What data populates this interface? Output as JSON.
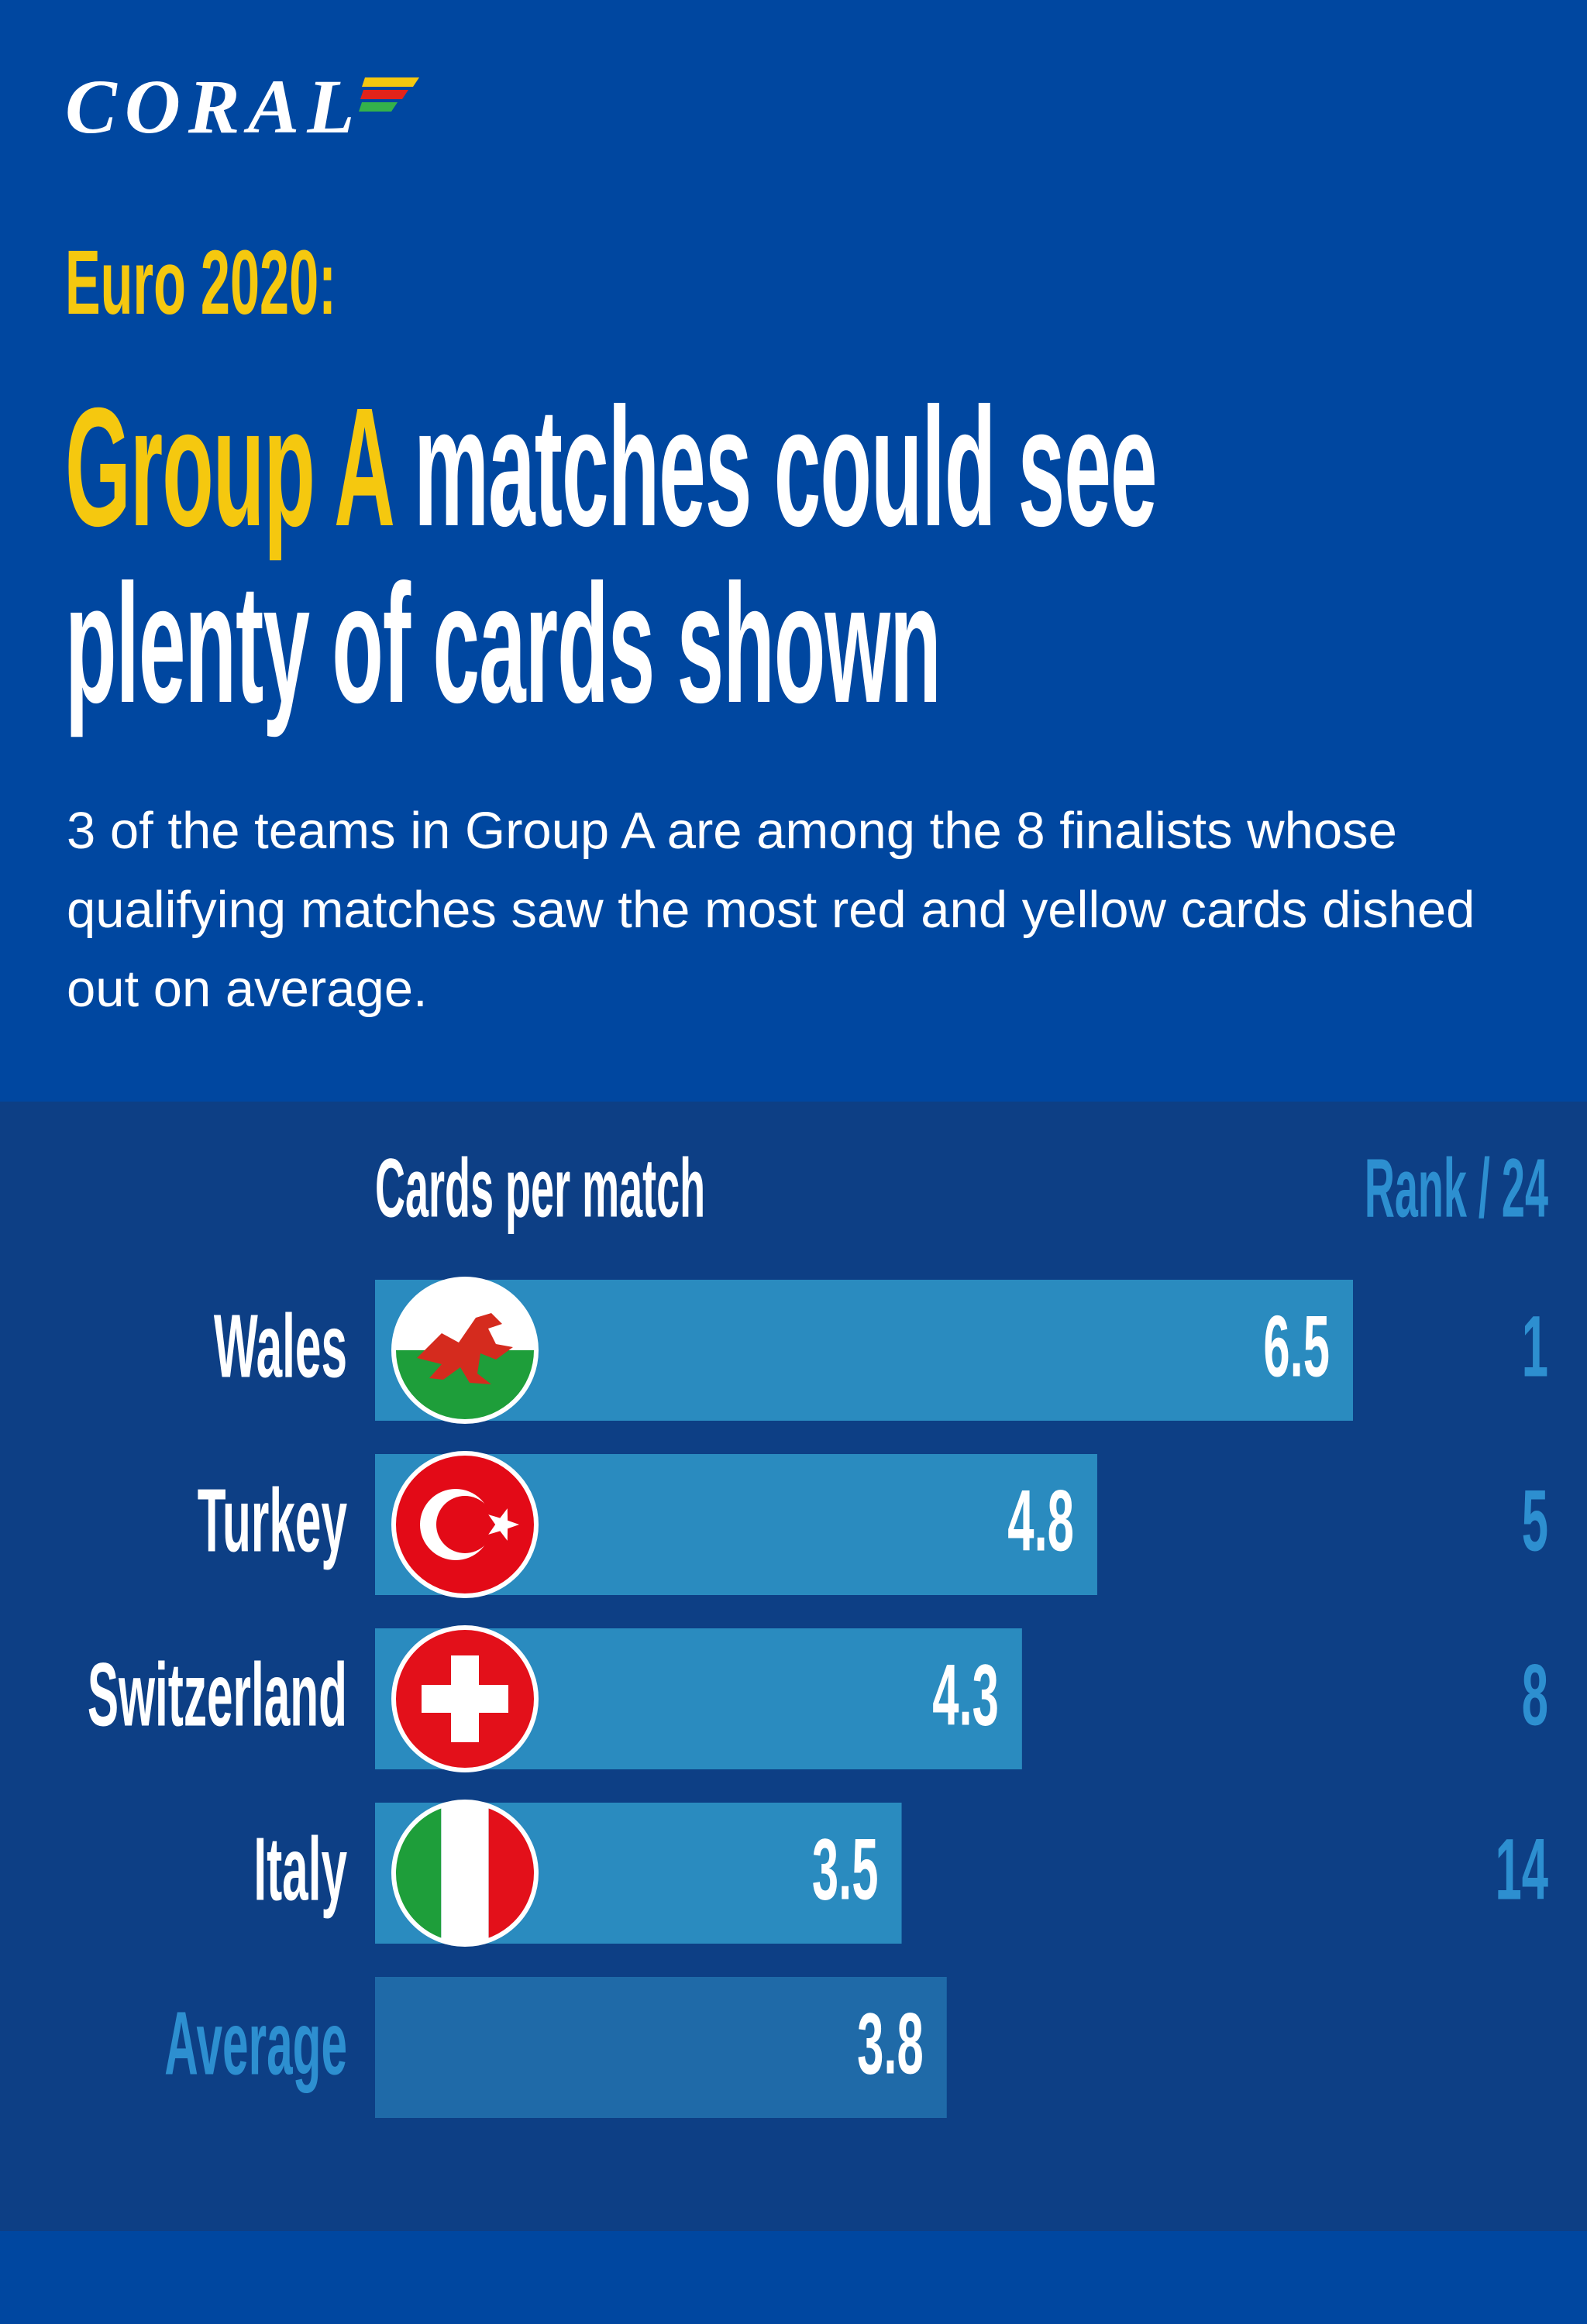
{
  "brand": {
    "logo_text": "CORAL",
    "colors": {
      "navy": "#0047a0",
      "panel": "#0d3f85",
      "yellow": "#f5c80f",
      "bar": "#2a8bbf",
      "muted": "#2d8fd0"
    }
  },
  "header": {
    "eyebrow": "Euro 2020:",
    "headline_highlight": "Group A",
    "headline_rest_line1": " matches could see",
    "headline_line2": "plenty of cards shown"
  },
  "intro": "3 of the teams in Group A are among the 8 finalists whose qualifying matches saw the most red and yellow cards dished out on average.",
  "chart_data": {
    "type": "bar",
    "orientation": "horizontal",
    "title": "Cards per match",
    "rank_label": "Rank / 24",
    "categories": [
      "Wales",
      "Turkey",
      "Switzerland",
      "Italy",
      "Average"
    ],
    "values": [
      6.5,
      4.8,
      4.3,
      3.5,
      3.8
    ],
    "value_labels": [
      "6.5",
      "4.8",
      "4.3",
      "3.5",
      "3.8"
    ],
    "ranks": [
      "1",
      "5",
      "8",
      "14",
      ""
    ],
    "flags": [
      "wales-flag-icon",
      "turkey-flag-icon",
      "switzerland-flag-icon",
      "italy-flag-icon",
      ""
    ]
  }
}
